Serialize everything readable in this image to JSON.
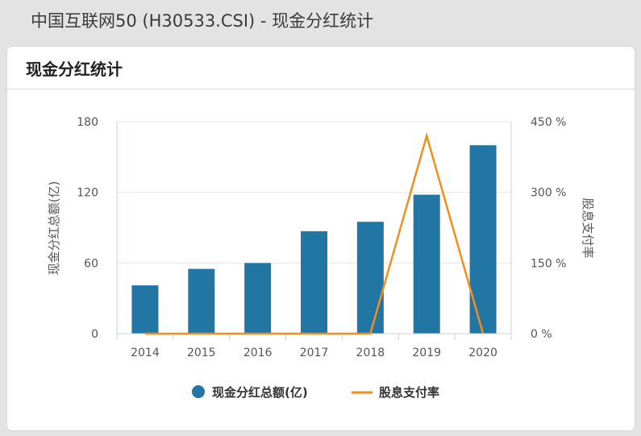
{
  "page": {
    "title": "中国互联网50 (H30533.CSI) - 现金分红统计"
  },
  "card": {
    "title": "现金分红统计"
  },
  "colors": {
    "bar": "#2176a4",
    "line": "#f28e1e",
    "grid": "#e6e6e6",
    "axis": "#c8d2e0"
  },
  "chart_data": {
    "type": "bar+line",
    "categories": [
      "2014",
      "2015",
      "2016",
      "2017",
      "2018",
      "2019",
      "2020"
    ],
    "series": [
      {
        "name": "现金分红总额(亿)",
        "type": "bar",
        "axis": "left",
        "values": [
          41,
          55,
          60,
          87,
          95,
          118,
          160
        ]
      },
      {
        "name": "股息支付率",
        "type": "line",
        "axis": "right",
        "values": [
          0,
          0,
          0,
          0,
          0,
          420,
          0
        ]
      }
    ],
    "ylabel_left": "现金分红总额(亿)",
    "ylabel_right": "股息支付率",
    "ylim_left": [
      0,
      180
    ],
    "ylim_right": [
      0,
      450
    ],
    "yticks_left": [
      "0",
      "60",
      "120",
      "180"
    ],
    "yticks_right": [
      "0 %",
      "150 %",
      "300 %",
      "450 %"
    ],
    "grid": true,
    "legend_position": "bottom"
  }
}
